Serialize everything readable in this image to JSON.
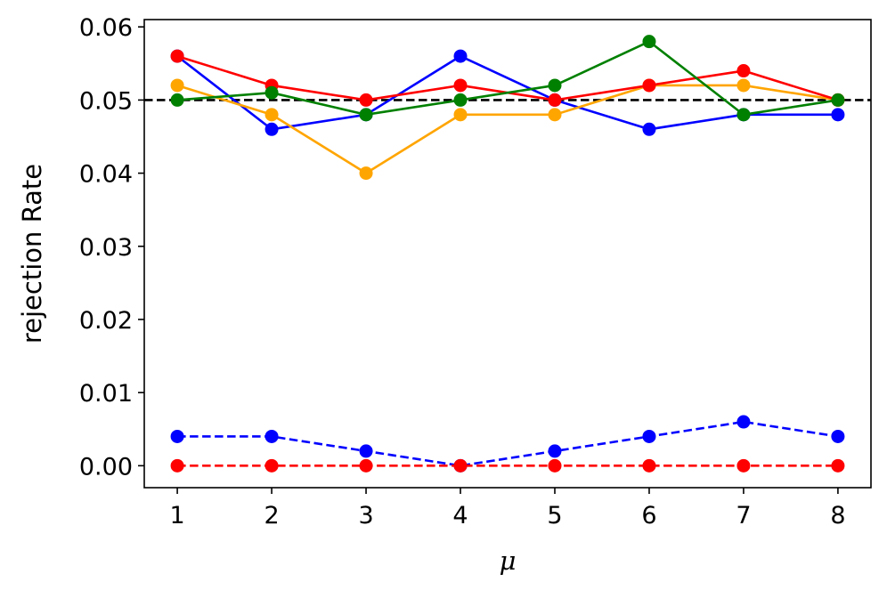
{
  "chart_data": {
    "type": "line",
    "xlabel": "μ",
    "ylabel": "rejection Rate",
    "xlim": [
      0.65,
      8.35
    ],
    "ylim": [
      -0.003,
      0.061
    ],
    "xticks": [
      1,
      2,
      3,
      4,
      5,
      6,
      7,
      8
    ],
    "yticks": [
      0.0,
      0.01,
      0.02,
      0.03,
      0.04,
      0.05,
      0.06
    ],
    "ytick_labels": [
      "0.00",
      "0.01",
      "0.02",
      "0.03",
      "0.04",
      "0.05",
      "0.06"
    ],
    "xtick_labels": [
      "1",
      "2",
      "3",
      "4",
      "5",
      "6",
      "7",
      "8"
    ],
    "grid": false,
    "reference_line": {
      "y": 0.05,
      "color": "#000000",
      "style": "dashed"
    },
    "x": [
      1,
      2,
      3,
      4,
      5,
      6,
      7,
      8
    ],
    "series": [
      {
        "color": "#0000ff",
        "style": "solid",
        "values": [
          0.056,
          0.046,
          0.048,
          0.056,
          0.05,
          0.046,
          0.048,
          0.048
        ]
      },
      {
        "color": "#ffa500",
        "style": "solid",
        "values": [
          0.052,
          0.048,
          0.04,
          0.048,
          0.048,
          0.052,
          0.052,
          0.05
        ]
      },
      {
        "color": "#ff0000",
        "style": "solid",
        "values": [
          0.056,
          0.052,
          0.05,
          0.052,
          0.05,
          0.052,
          0.054,
          0.05
        ]
      },
      {
        "color": "#008000",
        "style": "solid",
        "values": [
          0.05,
          0.051,
          0.048,
          0.05,
          0.052,
          0.058,
          0.048,
          0.05
        ]
      },
      {
        "color": "#0000ff",
        "style": "dashed",
        "values": [
          0.004,
          0.004,
          0.002,
          0.0,
          0.002,
          0.004,
          0.006,
          0.004
        ]
      },
      {
        "color": "#ff0000",
        "style": "dashed",
        "values": [
          0.0,
          0.0,
          0.0,
          0.0,
          0.0,
          0.0,
          0.0,
          0.0
        ]
      }
    ]
  }
}
